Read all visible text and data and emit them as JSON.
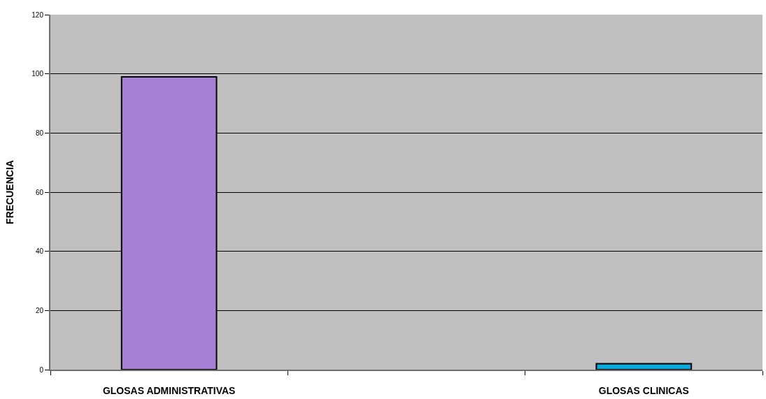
{
  "chart_data": {
    "type": "bar",
    "ylabel": "FRECUENCIA",
    "categories": [
      "GLOSAS ADMINISTRATIVAS",
      null,
      "GLOSAS CLINICAS"
    ],
    "values": [
      99,
      null,
      2
    ],
    "colors": [
      "#a680d4",
      null,
      "#0aa8d8"
    ],
    "ylim": [
      0,
      120
    ],
    "yticks": [
      0,
      20,
      40,
      60,
      80,
      100,
      120
    ],
    "grid": "y"
  }
}
